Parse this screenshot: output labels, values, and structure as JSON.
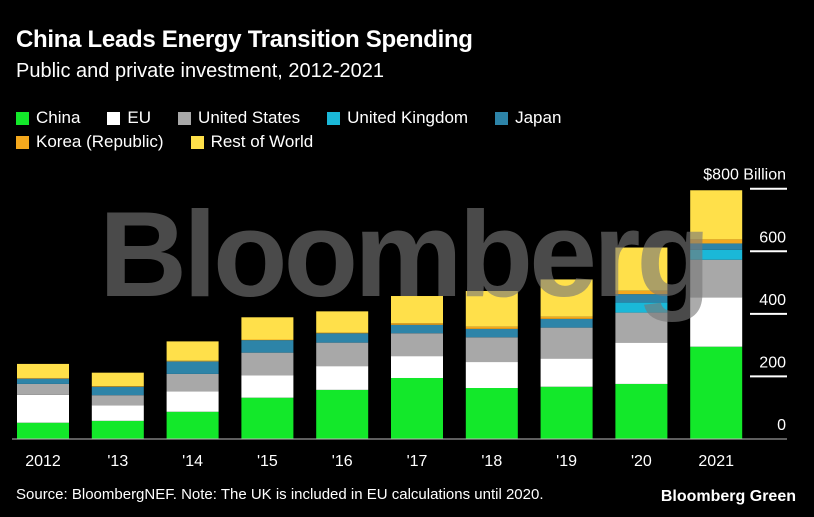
{
  "chart_data": {
    "type": "bar",
    "stacked": true,
    "title": "China Leads Energy Transition Spending",
    "subtitle": "Public and private investment, 2012-2021",
    "unit_label": "$800 Billion",
    "categories": [
      "2012",
      "'13",
      "'14",
      "'15",
      "'16",
      "'17",
      "'18",
      "'19",
      "'20",
      "2021"
    ],
    "series": [
      {
        "name": "China",
        "color": "#13e82a",
        "values": [
          52,
          58,
          87,
          132,
          157,
          195,
          163,
          167,
          176,
          295
        ]
      },
      {
        "name": "EU",
        "color": "#ffffff",
        "values": [
          89,
          50,
          65,
          72,
          76,
          70,
          83,
          90,
          132,
          158
        ]
      },
      {
        "name": "United States",
        "color": "#a8a8a8",
        "values": [
          35,
          32,
          56,
          72,
          75,
          73,
          79,
          99,
          96,
          120
        ]
      },
      {
        "name": "United Kingdom",
        "color": "#1ab8d8",
        "values": [
          0,
          0,
          0,
          0,
          0,
          0,
          0,
          0,
          32,
          32
        ]
      },
      {
        "name": "Japan",
        "color": "#2d84a8",
        "values": [
          17,
          27,
          40,
          40,
          30,
          27,
          27,
          28,
          27,
          20
        ]
      },
      {
        "name": "Korea (Republic)",
        "color": "#f4a81d",
        "values": [
          2,
          2,
          2,
          2,
          2,
          5,
          7,
          7,
          11,
          13
        ]
      },
      {
        "name": "Rest of World",
        "color": "#ffe04a",
        "values": [
          45,
          43,
          62,
          71,
          68,
          87,
          114,
          119,
          138,
          157
        ]
      }
    ],
    "ylim": [
      0,
      800
    ],
    "yticks": [
      0,
      200,
      400,
      600,
      800
    ],
    "ytick_labels": [
      "0",
      "200",
      "400",
      "600",
      "$800 Billion"
    ],
    "grid": false,
    "legend_position": "top-left"
  },
  "legend_rows": [
    [
      0,
      1,
      2,
      3,
      4
    ],
    [
      5,
      6
    ]
  ],
  "source": "Source: BloombergNEF. Note: The UK is included in EU calculations until 2020.",
  "brand": "Bloomberg Green",
  "watermark": "Bloomberg"
}
